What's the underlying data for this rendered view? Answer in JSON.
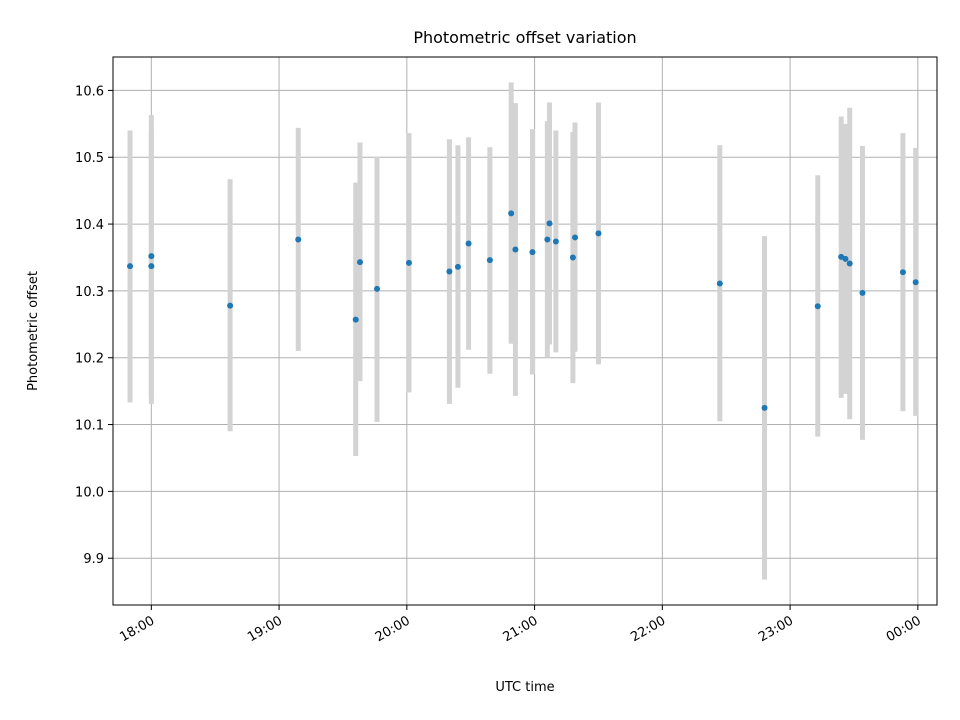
{
  "chart_data": {
    "type": "scatter",
    "title": "Photometric offset variation",
    "xlabel": "UTC time",
    "ylabel": "Photometric offset",
    "x_axis_type": "time",
    "xlim": [
      "17:42",
      "00:09"
    ],
    "ylim": [
      9.83,
      10.65
    ],
    "xticks": [
      {
        "t": "18:00",
        "label": "18:00"
      },
      {
        "t": "19:00",
        "label": "19:00"
      },
      {
        "t": "20:00",
        "label": "20:00"
      },
      {
        "t": "21:00",
        "label": "21:00"
      },
      {
        "t": "22:00",
        "label": "22:00"
      },
      {
        "t": "23:00",
        "label": "23:00"
      },
      {
        "t": "00:00",
        "label": "00:00"
      }
    ],
    "yticks": [
      9.9,
      10.0,
      10.1,
      10.2,
      10.3,
      10.4,
      10.5,
      10.6
    ],
    "ytick_labels": [
      "9.9",
      "10.0",
      "10.1",
      "10.2",
      "10.3",
      "10.4",
      "10.5",
      "10.6"
    ],
    "grid": true,
    "marker_color": "#1f77b4",
    "errorbar_color": "#d3d3d3",
    "points": [
      {
        "t": "17:50",
        "y": 10.337,
        "lo": 10.133,
        "hi": 10.54
      },
      {
        "t": "18:00",
        "y": 10.352,
        "lo": 10.14,
        "hi": 10.563
      },
      {
        "t": "18:00",
        "y": 10.337,
        "lo": 10.131,
        "hi": 10.54
      },
      {
        "t": "18:37",
        "y": 10.278,
        "lo": 10.09,
        "hi": 10.467
      },
      {
        "t": "19:09",
        "y": 10.377,
        "lo": 10.21,
        "hi": 10.544
      },
      {
        "t": "19:36",
        "y": 10.257,
        "lo": 10.053,
        "hi": 10.462
      },
      {
        "t": "19:38",
        "y": 10.343,
        "lo": 10.165,
        "hi": 10.522
      },
      {
        "t": "19:46",
        "y": 10.303,
        "lo": 10.104,
        "hi": 10.501
      },
      {
        "t": "20:01",
        "y": 10.342,
        "lo": 10.148,
        "hi": 10.536
      },
      {
        "t": "20:20",
        "y": 10.329,
        "lo": 10.131,
        "hi": 10.527
      },
      {
        "t": "20:24",
        "y": 10.336,
        "lo": 10.155,
        "hi": 10.518
      },
      {
        "t": "20:29",
        "y": 10.371,
        "lo": 10.212,
        "hi": 10.53
      },
      {
        "t": "20:39",
        "y": 10.346,
        "lo": 10.176,
        "hi": 10.515
      },
      {
        "t": "20:49",
        "y": 10.416,
        "lo": 10.221,
        "hi": 10.612
      },
      {
        "t": "20:51",
        "y": 10.362,
        "lo": 10.143,
        "hi": 10.581
      },
      {
        "t": "20:59",
        "y": 10.358,
        "lo": 10.175,
        "hi": 10.542
      },
      {
        "t": "21:06",
        "y": 10.377,
        "lo": 10.2,
        "hi": 10.554
      },
      {
        "t": "21:07",
        "y": 10.401,
        "lo": 10.22,
        "hi": 10.582
      },
      {
        "t": "21:10",
        "y": 10.374,
        "lo": 10.208,
        "hi": 10.54
      },
      {
        "t": "21:18",
        "y": 10.35,
        "lo": 10.162,
        "hi": 10.538
      },
      {
        "t": "21:19",
        "y": 10.38,
        "lo": 10.209,
        "hi": 10.552
      },
      {
        "t": "21:30",
        "y": 10.386,
        "lo": 10.19,
        "hi": 10.582
      },
      {
        "t": "22:27",
        "y": 10.311,
        "lo": 10.105,
        "hi": 10.518
      },
      {
        "t": "22:48",
        "y": 10.125,
        "lo": 9.868,
        "hi": 10.382
      },
      {
        "t": "23:13",
        "y": 10.277,
        "lo": 10.082,
        "hi": 10.473
      },
      {
        "t": "23:24",
        "y": 10.351,
        "lo": 10.14,
        "hi": 10.561
      },
      {
        "t": "23:26",
        "y": 10.348,
        "lo": 10.146,
        "hi": 10.55
      },
      {
        "t": "23:28",
        "y": 10.341,
        "lo": 10.108,
        "hi": 10.574
      },
      {
        "t": "23:34",
        "y": 10.297,
        "lo": 10.077,
        "hi": 10.517
      },
      {
        "t": "23:53",
        "y": 10.328,
        "lo": 10.12,
        "hi": 10.536
      },
      {
        "t": "23:59",
        "y": 10.313,
        "lo": 10.113,
        "hi": 10.514
      }
    ]
  }
}
